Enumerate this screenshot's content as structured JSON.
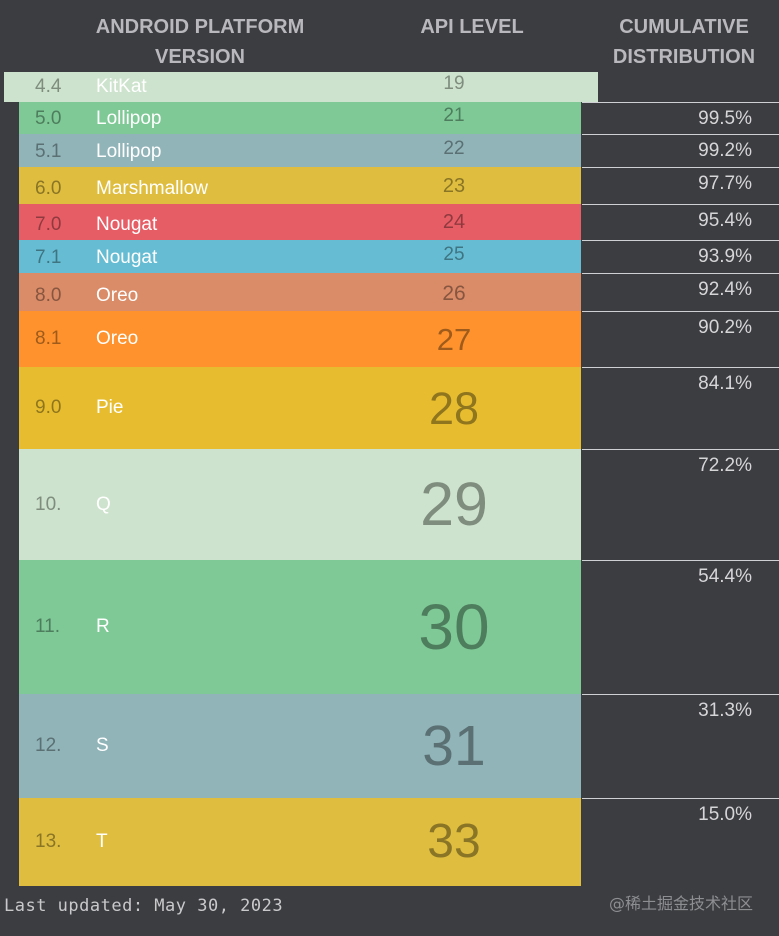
{
  "header": {
    "col1": "ANDROID PLATFORM\nVERSION",
    "col2": "API LEVEL",
    "col3": "CUMULATIVE\nDISTRIBUTION"
  },
  "chart_data": {
    "type": "table",
    "columns": [
      "ANDROID PLATFORM VERSION",
      "API LEVEL",
      "CUMULATIVE DISTRIBUTION"
    ],
    "rows": [
      {
        "version": "4.4",
        "name": "KitKat",
        "api": "19",
        "cumulative": "",
        "color": "#cde3cd"
      },
      {
        "version": "5.0",
        "name": "Lollipop",
        "api": "21",
        "cumulative": "99.5%",
        "color": "#7ec996"
      },
      {
        "version": "5.1",
        "name": "Lollipop",
        "api": "22",
        "cumulative": "99.2%",
        "color": "#91b4b9"
      },
      {
        "version": "6.0",
        "name": "Marshmallow",
        "api": "23",
        "cumulative": "97.7%",
        "color": "#dfbd3e"
      },
      {
        "version": "7.0",
        "name": "Nougat",
        "api": "24",
        "cumulative": "95.4%",
        "color": "#e75d66"
      },
      {
        "version": "7.1",
        "name": "Nougat",
        "api": "25",
        "cumulative": "93.9%",
        "color": "#66bdd3"
      },
      {
        "version": "8.0",
        "name": "Oreo",
        "api": "26",
        "cumulative": "92.4%",
        "color": "#da8b67"
      },
      {
        "version": "8.1",
        "name": "Oreo",
        "api": "27",
        "cumulative": "90.2%",
        "color": "#ff922c"
      },
      {
        "version": "9.0",
        "name": "Pie",
        "api": "28",
        "cumulative": "84.1%",
        "color": "#e7bd2f"
      },
      {
        "version": "10.",
        "name": "Q",
        "api": "29",
        "cumulative": "72.2%",
        "color": "#cde3cd"
      },
      {
        "version": "11.",
        "name": "R",
        "api": "30",
        "cumulative": "54.4%",
        "color": "#7ec996"
      },
      {
        "version": "12.",
        "name": "S",
        "api": "31",
        "cumulative": "31.3%",
        "color": "#91b4b9"
      },
      {
        "version": "13.",
        "name": "T",
        "api": "33",
        "cumulative": "15.0%",
        "color": "#dfbd3e"
      }
    ]
  },
  "footer": "Last updated: May 30, 2023",
  "watermark": "@稀土掘金技术社区"
}
